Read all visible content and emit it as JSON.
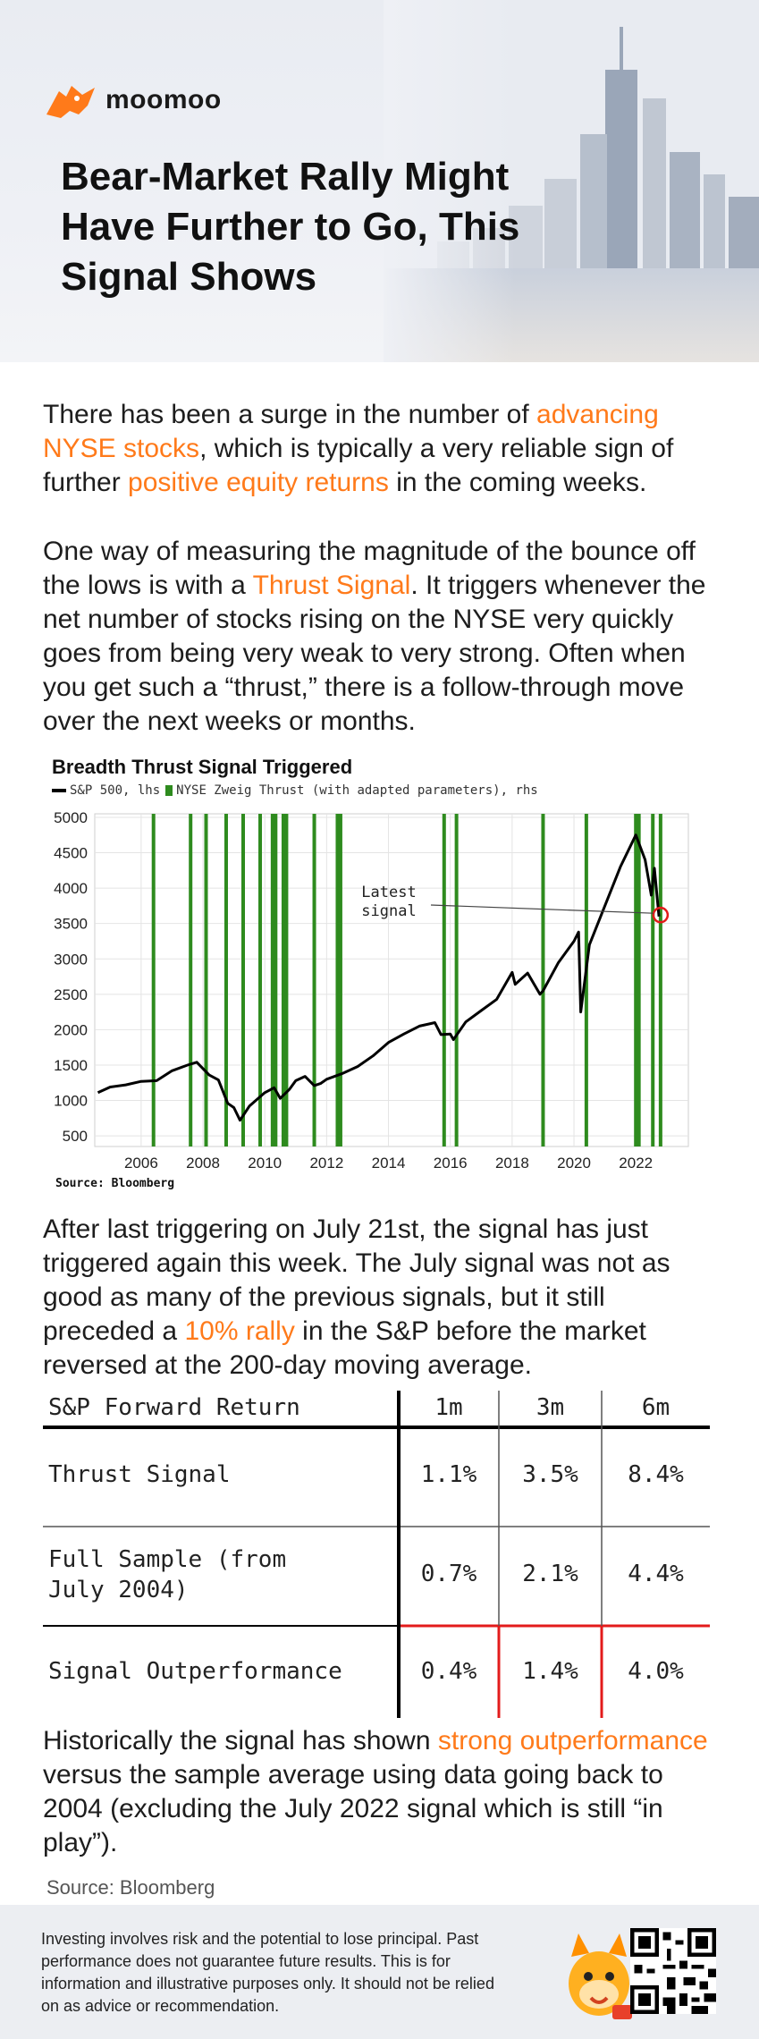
{
  "brand": {
    "name": "moomoo",
    "accent": "#ff7a1a"
  },
  "title": "Bear-Market Rally Might Have Further to Go, This Signal Shows",
  "para1": [
    {
      "t": "There has been a surge in the number of "
    },
    {
      "t": "advancing NYSE stocks",
      "hl": true
    },
    {
      "t": ", which is typically a very reliable sign of further "
    },
    {
      "t": "positive equity returns",
      "hl": true
    },
    {
      "t": " in the coming weeks."
    }
  ],
  "para2": [
    {
      "t": "One way of measuring the magnitude of the bounce off the lows is with a "
    },
    {
      "t": "Thrust Signal",
      "hl": true
    },
    {
      "t": ". It triggers whenever the net number of stocks rising on the NYSE very quickly goes from being very weak to very strong. Often when you get such a “thrust,” there is a follow-through move over the next weeks or months."
    }
  ],
  "para3": [
    {
      "t": "After last triggering on July 21st, the signal has just triggered again this week. The July signal was not as good as many of the previous signals, but it still preceded a "
    },
    {
      "t": "10% rally",
      "hl": true
    },
    {
      "t": " in the S&P before the market reversed at the 200-day moving average."
    }
  ],
  "para4": [
    {
      "t": "Historically the signal has shown "
    },
    {
      "t": "strong outperformance",
      "hl": true
    },
    {
      "t": " versus the sample average using data going back to 2004 (excluding the July 2022 signal which is still “in play”)."
    }
  ],
  "chart_data": {
    "type": "line",
    "title": "Breadth Thrust Signal Triggered",
    "legend": [
      "S&P 500, lhs",
      "NYSE Zweig Thrust (with adapted parameters), rhs"
    ],
    "legend_placement": "top-left",
    "source": "Source: Bloomberg",
    "annotation": "Latest signal",
    "xlim": [
      2004.5,
      2023.7
    ],
    "ylim": [
      350,
      5050
    ],
    "x_ticks": [
      2006,
      2008,
      2010,
      2012,
      2014,
      2016,
      2018,
      2020,
      2022
    ],
    "y_ticks": [
      500,
      1000,
      1500,
      2000,
      2500,
      3000,
      3500,
      4000,
      4500,
      5000
    ],
    "grid": true,
    "series": [
      {
        "name": "S&P 500, lhs",
        "color": "#000000",
        "x": [
          2004.6,
          2005.0,
          2005.5,
          2006.0,
          2006.5,
          2007.0,
          2007.5,
          2007.8,
          2008.2,
          2008.5,
          2008.8,
          2009.0,
          2009.2,
          2009.5,
          2010.0,
          2010.3,
          2010.5,
          2010.8,
          2011.0,
          2011.3,
          2011.6,
          2011.8,
          2012.0,
          2012.5,
          2013.0,
          2013.5,
          2014.0,
          2014.5,
          2015.0,
          2015.5,
          2015.7,
          2016.0,
          2016.1,
          2016.5,
          2017.0,
          2017.5,
          2018.0,
          2018.1,
          2018.5,
          2018.9,
          2019.0,
          2019.5,
          2020.0,
          2020.15,
          2020.22,
          2020.5,
          2021.0,
          2021.5,
          2022.0,
          2022.3,
          2022.5,
          2022.6,
          2022.75
        ],
        "values": [
          1110,
          1190,
          1220,
          1270,
          1280,
          1420,
          1500,
          1540,
          1360,
          1290,
          960,
          900,
          720,
          920,
          1110,
          1180,
          1030,
          1160,
          1280,
          1340,
          1210,
          1240,
          1300,
          1380,
          1480,
          1630,
          1820,
          1940,
          2050,
          2100,
          1930,
          1940,
          1860,
          2110,
          2270,
          2430,
          2810,
          2640,
          2800,
          2500,
          2550,
          2950,
          3250,
          3380,
          2250,
          3200,
          3750,
          4300,
          4750,
          4400,
          3900,
          4280,
          3600
        ]
      }
    ],
    "signals": [
      2006.4,
      2007.6,
      2008.1,
      2008.75,
      2009.3,
      2009.85,
      2010.25,
      2010.35,
      2010.6,
      2010.7,
      2011.6,
      2012.35,
      2012.45,
      2015.8,
      2016.2,
      2019.0,
      2020.4,
      2022.0,
      2022.1,
      2022.55,
      2022.8
    ],
    "latest_signal": {
      "x": 2022.8,
      "y": 3620
    }
  },
  "table": {
    "headers": [
      "S&P Forward Return",
      "1m",
      "3m",
      "6m"
    ],
    "rows": [
      {
        "label": "Thrust Signal",
        "values": [
          "1.1%",
          "3.5%",
          "8.4%"
        ]
      },
      {
        "label": "Full Sample (from July 2004)",
        "values": [
          "0.7%",
          "2.1%",
          "4.4%"
        ]
      },
      {
        "label": "Signal Outperformance",
        "values": [
          "0.4%",
          "1.4%",
          "4.0%"
        ]
      }
    ]
  },
  "source": "Source: Bloomberg",
  "disclaimer": "Investing involves risk and the potential to lose principal. Past performance does not guarantee future results. This is for information and illustrative purposes only. It should not be relied on as advice or recommendation."
}
